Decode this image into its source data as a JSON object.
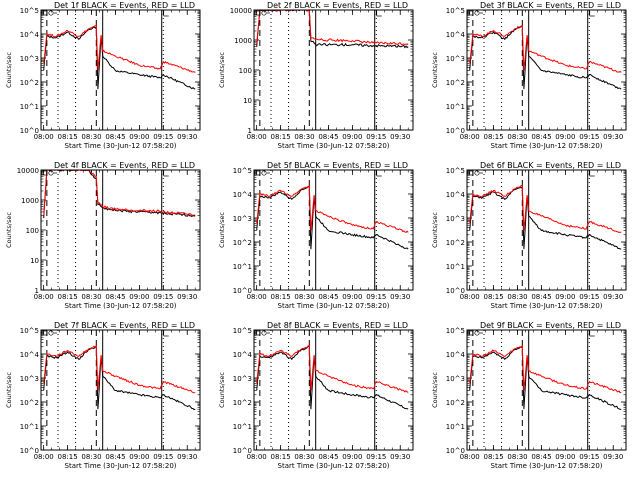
{
  "colors": {
    "events": "#000000",
    "lld": "#ff0000",
    "frame": "#000000",
    "background": "#ffffff"
  },
  "x_ticks": [
    "08:00",
    "08:15",
    "08:30",
    "08:45",
    "09:00",
    "09:15",
    "09:30"
  ],
  "x_label": "Start Time (30-Jun-12 07:58:20)",
  "y_label": "Counts/sec",
  "legend_icon": "detector-annotation-icon",
  "chart_data": [
    {
      "type": "line",
      "title": "Det 1f BLACK = Events, RED = LLD",
      "y_scale": "log",
      "ylim": [
        1,
        100000
      ],
      "y_ticks": [
        "10^0",
        "10^1",
        "10^2",
        "10^3",
        "10^4",
        "10^5"
      ],
      "x_range": [
        "07:58:20",
        "09:38"
      ],
      "vertical_dashed": [
        "08:02",
        "08:33"
      ],
      "vertical_dotted": [
        "08:09",
        "08:20",
        "09:15"
      ],
      "vertical_solid": [
        "08:37",
        "09:14"
      ],
      "series": [
        {
          "name": "BLACK = Events",
          "x": [
            "08:00",
            "08:02",
            "08:08",
            "08:15",
            "08:22",
            "08:28",
            "08:33",
            "08:34",
            "08:36",
            "08:37",
            "08:45",
            "09:00",
            "09:13",
            "09:15",
            "09:35"
          ],
          "values": [
            300,
            8000,
            7000,
            12000,
            6000,
            15000,
            20000,
            50,
            8000,
            1200,
            300,
            200,
            150,
            200,
            50
          ]
        },
        {
          "name": "RED = LLD",
          "x": [
            "08:00",
            "08:02",
            "08:08",
            "08:15",
            "08:22",
            "08:28",
            "08:33",
            "08:34",
            "08:36",
            "08:37",
            "08:45",
            "09:00",
            "09:13",
            "09:15",
            "09:35"
          ],
          "values": [
            600,
            10000,
            8000,
            14000,
            8000,
            16000,
            22000,
            300,
            9000,
            2000,
            1200,
            500,
            350,
            700,
            250
          ]
        }
      ]
    },
    {
      "type": "line",
      "title": "Det 2f BLACK = Events, RED = LLD",
      "y_scale": "log",
      "ylim": [
        1,
        10000
      ],
      "y_ticks": [
        "1",
        "10",
        "100",
        "1000",
        "10000"
      ],
      "x_range": [
        "07:58:20",
        "09:38"
      ],
      "vertical_dashed": [
        "08:02",
        "08:33"
      ],
      "vertical_dotted": [
        "08:09",
        "08:20",
        "09:15"
      ],
      "vertical_solid": [
        "08:37",
        "09:14"
      ],
      "series": [
        {
          "name": "BLACK = Events",
          "x": [
            "08:00",
            "08:02",
            "08:08",
            "08:15",
            "08:22",
            "08:28",
            "08:33",
            "08:34",
            "08:36",
            "08:37",
            "08:45",
            "09:00",
            "09:13",
            "09:15",
            "09:35"
          ],
          "values": [
            600,
            10000,
            10000,
            10000,
            10000,
            10000,
            10000,
            900,
            800,
            700,
            700,
            700,
            650,
            650,
            600
          ]
        },
        {
          "name": "RED = LLD",
          "x": [
            "08:00",
            "08:02",
            "08:08",
            "08:15",
            "08:22",
            "08:28",
            "08:33",
            "08:34",
            "08:36",
            "08:37",
            "08:45",
            "09:00",
            "09:13",
            "09:15",
            "09:35"
          ],
          "values": [
            700,
            10000,
            10000,
            10000,
            10000,
            10000,
            10000,
            1200,
            1100,
            1050,
            1000,
            950,
            800,
            800,
            750
          ]
        }
      ]
    },
    {
      "type": "line",
      "title": "Det 3f BLACK = Events, RED = LLD",
      "y_scale": "log",
      "ylim": [
        1,
        100000
      ],
      "y_ticks": [
        "10^0",
        "10^1",
        "10^2",
        "10^3",
        "10^4",
        "10^5"
      ],
      "x_range": [
        "07:58:20",
        "09:38"
      ],
      "vertical_dashed": [
        "08:02",
        "08:33"
      ],
      "vertical_dotted": [
        "08:09",
        "08:20",
        "09:15"
      ],
      "vertical_solid": [
        "08:37",
        "09:14"
      ],
      "series": [
        {
          "name": "BLACK = Events",
          "x": [
            "08:00",
            "08:02",
            "08:08",
            "08:15",
            "08:22",
            "08:28",
            "08:33",
            "08:34",
            "08:36",
            "08:37",
            "08:45",
            "09:00",
            "09:13",
            "09:15",
            "09:35"
          ],
          "values": [
            300,
            8000,
            7000,
            12000,
            6000,
            15000,
            20000,
            50,
            8000,
            1200,
            300,
            200,
            150,
            200,
            50
          ]
        },
        {
          "name": "RED = LLD",
          "x": [
            "08:00",
            "08:02",
            "08:08",
            "08:15",
            "08:22",
            "08:28",
            "08:33",
            "08:34",
            "08:36",
            "08:37",
            "08:45",
            "09:00",
            "09:13",
            "09:15",
            "09:35"
          ],
          "values": [
            600,
            10000,
            8000,
            14000,
            8000,
            16000,
            22000,
            300,
            9000,
            2000,
            1200,
            500,
            350,
            700,
            250
          ]
        }
      ]
    },
    {
      "type": "line",
      "title": "Det 4f BLACK = Events, RED = LLD",
      "y_scale": "log",
      "ylim": [
        1,
        10000
      ],
      "y_ticks": [
        "1",
        "10",
        "100",
        "1000",
        "10000"
      ],
      "x_range": [
        "07:58:20",
        "09:38"
      ],
      "vertical_dashed": [
        "08:02",
        "08:33"
      ],
      "vertical_dotted": [
        "08:09",
        "08:20",
        "09:15"
      ],
      "vertical_solid": [
        "08:37",
        "09:14"
      ],
      "series": [
        {
          "name": "BLACK = Events",
          "x": [
            "08:00",
            "08:02",
            "08:08",
            "08:15",
            "08:22",
            "08:28",
            "08:33",
            "08:34",
            "08:36",
            "08:37",
            "08:45",
            "09:00",
            "09:13",
            "09:15",
            "09:35"
          ],
          "values": [
            250,
            10000,
            10000,
            10000,
            10000,
            10000,
            5000,
            700,
            600,
            550,
            450,
            400,
            380,
            350,
            300
          ]
        },
        {
          "name": "RED = LLD",
          "x": [
            "08:00",
            "08:02",
            "08:08",
            "08:15",
            "08:22",
            "08:28",
            "08:33",
            "08:34",
            "08:36",
            "08:37",
            "08:45",
            "09:00",
            "09:13",
            "09:15",
            "09:35"
          ],
          "values": [
            300,
            10000,
            10000,
            10000,
            10000,
            10000,
            6000,
            800,
            700,
            600,
            500,
            450,
            420,
            400,
            320
          ]
        }
      ]
    },
    {
      "type": "line",
      "title": "Det 5f BLACK = Events, RED = LLD",
      "y_scale": "log",
      "ylim": [
        1,
        100000
      ],
      "y_ticks": [
        "10^0",
        "10^1",
        "10^2",
        "10^3",
        "10^4",
        "10^5"
      ],
      "x_range": [
        "07:58:20",
        "09:38"
      ],
      "vertical_dashed": [
        "08:02",
        "08:33"
      ],
      "vertical_dotted": [
        "08:09",
        "08:20",
        "09:15"
      ],
      "vertical_solid": [
        "08:37",
        "09:14"
      ],
      "series": [
        {
          "name": "BLACK = Events",
          "x": [
            "08:00",
            "08:02",
            "08:08",
            "08:15",
            "08:22",
            "08:28",
            "08:33",
            "08:34",
            "08:36",
            "08:37",
            "08:45",
            "09:00",
            "09:13",
            "09:15",
            "09:35"
          ],
          "values": [
            300,
            8000,
            7000,
            12000,
            6000,
            15000,
            20000,
            50,
            8000,
            1200,
            300,
            200,
            150,
            200,
            50
          ]
        },
        {
          "name": "RED = LLD",
          "x": [
            "08:00",
            "08:02",
            "08:08",
            "08:15",
            "08:22",
            "08:28",
            "08:33",
            "08:34",
            "08:36",
            "08:37",
            "08:45",
            "09:00",
            "09:13",
            "09:15",
            "09:35"
          ],
          "values": [
            600,
            10000,
            8000,
            14000,
            8000,
            16000,
            22000,
            300,
            9000,
            2000,
            1200,
            500,
            350,
            700,
            250
          ]
        }
      ]
    },
    {
      "type": "line",
      "title": "Det 6f BLACK = Events, RED = LLD",
      "y_scale": "log",
      "ylim": [
        1,
        100000
      ],
      "y_ticks": [
        "10^0",
        "10^1",
        "10^2",
        "10^3",
        "10^4",
        "10^5"
      ],
      "x_range": [
        "07:58:20",
        "09:38"
      ],
      "vertical_dashed": [
        "08:02",
        "08:33"
      ],
      "vertical_dotted": [
        "08:09",
        "08:20",
        "09:15"
      ],
      "vertical_solid": [
        "08:37",
        "09:14"
      ],
      "series": [
        {
          "name": "BLACK = Events",
          "x": [
            "08:00",
            "08:02",
            "08:08",
            "08:15",
            "08:22",
            "08:28",
            "08:33",
            "08:34",
            "08:36",
            "08:37",
            "08:45",
            "09:00",
            "09:13",
            "09:15",
            "09:35"
          ],
          "values": [
            300,
            8000,
            7000,
            12000,
            6000,
            15000,
            20000,
            50,
            8000,
            1200,
            300,
            200,
            150,
            200,
            50
          ]
        },
        {
          "name": "RED = LLD",
          "x": [
            "08:00",
            "08:02",
            "08:08",
            "08:15",
            "08:22",
            "08:28",
            "08:33",
            "08:34",
            "08:36",
            "08:37",
            "08:45",
            "09:00",
            "09:13",
            "09:15",
            "09:35"
          ],
          "values": [
            600,
            10000,
            8000,
            14000,
            8000,
            16000,
            22000,
            300,
            9000,
            2000,
            1200,
            500,
            350,
            700,
            250
          ]
        }
      ]
    },
    {
      "type": "line",
      "title": "Det 7f BLACK = Events, RED = LLD",
      "y_scale": "log",
      "ylim": [
        1,
        100000
      ],
      "y_ticks": [
        "10^0",
        "10^1",
        "10^2",
        "10^3",
        "10^4",
        "10^5"
      ],
      "x_range": [
        "07:58:20",
        "09:38"
      ],
      "vertical_dashed": [
        "08:02",
        "08:33"
      ],
      "vertical_dotted": [
        "08:09",
        "08:20",
        "09:15"
      ],
      "vertical_solid": [
        "08:37",
        "09:14"
      ],
      "series": [
        {
          "name": "BLACK = Events",
          "x": [
            "08:00",
            "08:02",
            "08:08",
            "08:15",
            "08:22",
            "08:28",
            "08:33",
            "08:34",
            "08:36",
            "08:37",
            "08:45",
            "09:00",
            "09:13",
            "09:15",
            "09:35"
          ],
          "values": [
            300,
            8000,
            7000,
            12000,
            6000,
            15000,
            20000,
            50,
            8000,
            1200,
            300,
            200,
            150,
            200,
            50
          ]
        },
        {
          "name": "RED = LLD",
          "x": [
            "08:00",
            "08:02",
            "08:08",
            "08:15",
            "08:22",
            "08:28",
            "08:33",
            "08:34",
            "08:36",
            "08:37",
            "08:45",
            "09:00",
            "09:13",
            "09:15",
            "09:35"
          ],
          "values": [
            600,
            10000,
            8000,
            14000,
            8000,
            16000,
            22000,
            300,
            9000,
            2000,
            1200,
            500,
            350,
            700,
            250
          ]
        }
      ]
    },
    {
      "type": "line",
      "title": "Det 8f BLACK = Events, RED = LLD",
      "y_scale": "log",
      "ylim": [
        1,
        100000
      ],
      "y_ticks": [
        "10^0",
        "10^1",
        "10^2",
        "10^3",
        "10^4",
        "10^5"
      ],
      "x_range": [
        "07:58:20",
        "09:38"
      ],
      "vertical_dashed": [
        "08:02",
        "08:33"
      ],
      "vertical_dotted": [
        "08:09",
        "08:20",
        "09:15"
      ],
      "vertical_solid": [
        "08:37",
        "09:14"
      ],
      "series": [
        {
          "name": "BLACK = Events",
          "x": [
            "08:00",
            "08:02",
            "08:08",
            "08:15",
            "08:22",
            "08:28",
            "08:33",
            "08:34",
            "08:36",
            "08:37",
            "08:45",
            "09:00",
            "09:13",
            "09:15",
            "09:35"
          ],
          "values": [
            300,
            8000,
            7000,
            12000,
            6000,
            15000,
            20000,
            50,
            8000,
            1200,
            300,
            200,
            150,
            200,
            50
          ]
        },
        {
          "name": "RED = LLD",
          "x": [
            "08:00",
            "08:02",
            "08:08",
            "08:15",
            "08:22",
            "08:28",
            "08:33",
            "08:34",
            "08:36",
            "08:37",
            "08:45",
            "09:00",
            "09:13",
            "09:15",
            "09:35"
          ],
          "values": [
            600,
            10000,
            8000,
            14000,
            8000,
            16000,
            22000,
            300,
            9000,
            2000,
            1200,
            500,
            350,
            700,
            250
          ]
        }
      ]
    },
    {
      "type": "line",
      "title": "Det 9f BLACK = Events, RED = LLD",
      "y_scale": "log",
      "ylim": [
        1,
        100000
      ],
      "y_ticks": [
        "10^0",
        "10^1",
        "10^2",
        "10^3",
        "10^4",
        "10^5"
      ],
      "x_range": [
        "07:58:20",
        "09:38"
      ],
      "vertical_dashed": [
        "08:02",
        "08:33"
      ],
      "vertical_dotted": [
        "08:09",
        "08:20",
        "09:15"
      ],
      "vertical_solid": [
        "08:37",
        "09:14"
      ],
      "series": [
        {
          "name": "BLACK = Events",
          "x": [
            "08:00",
            "08:02",
            "08:08",
            "08:15",
            "08:22",
            "08:28",
            "08:33",
            "08:34",
            "08:36",
            "08:37",
            "08:45",
            "09:00",
            "09:13",
            "09:15",
            "09:35"
          ],
          "values": [
            300,
            8000,
            7000,
            12000,
            6000,
            15000,
            20000,
            50,
            8000,
            1200,
            300,
            200,
            150,
            200,
            50
          ]
        },
        {
          "name": "RED = LLD",
          "x": [
            "08:00",
            "08:02",
            "08:08",
            "08:15",
            "08:22",
            "08:28",
            "08:33",
            "08:34",
            "08:36",
            "08:37",
            "08:45",
            "09:00",
            "09:13",
            "09:15",
            "09:35"
          ],
          "values": [
            600,
            10000,
            8000,
            14000,
            8000,
            16000,
            22000,
            300,
            9000,
            2000,
            1200,
            500,
            350,
            700,
            250
          ]
        }
      ]
    }
  ]
}
